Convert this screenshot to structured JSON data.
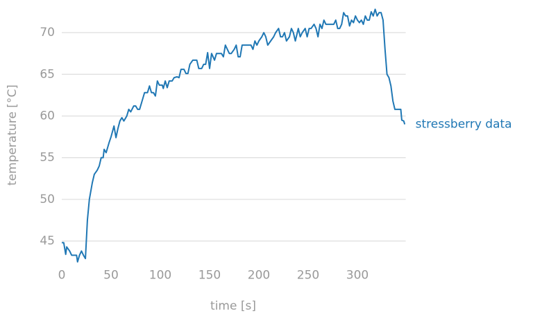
{
  "chart_data": {
    "type": "line",
    "xlabel": "time [s]",
    "ylabel": "temperature [°C]",
    "x": [
      0,
      2,
      4,
      5,
      8,
      10,
      13,
      15,
      16,
      18,
      20,
      22,
      24,
      26,
      28,
      31,
      33,
      36,
      38,
      40,
      42,
      43,
      45,
      48,
      50,
      53,
      55,
      57,
      59,
      61,
      63,
      66,
      68,
      70,
      73,
      75,
      77,
      79,
      82,
      84,
      87,
      89,
      91,
      93,
      95,
      97,
      99,
      102,
      103,
      105,
      107,
      109,
      112,
      114,
      117,
      119,
      121,
      124,
      126,
      128,
      130,
      133,
      137,
      139,
      142,
      144,
      146,
      148,
      150,
      152,
      155,
      157,
      159,
      162,
      164,
      166,
      168,
      170,
      172,
      175,
      177,
      179,
      181,
      183,
      186,
      192,
      194,
      196,
      198,
      200,
      203,
      205,
      207,
      209,
      212,
      215,
      217,
      220,
      222,
      224,
      226,
      228,
      231,
      233,
      235,
      237,
      240,
      242,
      244,
      247,
      249,
      251,
      253,
      256,
      258,
      260,
      262,
      264,
      266,
      268,
      271,
      273,
      276,
      278,
      280,
      282,
      284,
      286,
      288,
      290,
      292,
      294,
      296,
      298,
      300,
      302,
      304,
      306,
      308,
      310,
      312,
      314,
      316,
      318,
      320,
      322,
      324,
      326,
      328,
      330,
      332,
      334,
      336,
      338,
      340,
      342,
      344,
      345,
      347,
      348
    ],
    "series": [
      {
        "name": "stressberry data",
        "color": "#1f77b4",
        "values": [
          44.8,
          44.8,
          43.4,
          44.3,
          43.8,
          43.3,
          43.3,
          43.3,
          42.5,
          43.3,
          43.8,
          43.3,
          42.9,
          47.5,
          50,
          52,
          53,
          53.5,
          54,
          55,
          55,
          56,
          55.6,
          56.8,
          57.5,
          58.8,
          57.4,
          58.5,
          59.4,
          59.8,
          59.4,
          60,
          60.8,
          60.5,
          61.2,
          61.2,
          60.8,
          60.8,
          62,
          62.8,
          62.8,
          63.6,
          62.8,
          62.8,
          62.4,
          64.2,
          63.7,
          63.7,
          63.3,
          64.2,
          63.4,
          64.2,
          64.2,
          64.6,
          64.7,
          64.6,
          65.6,
          65.6,
          65.1,
          65.1,
          66.2,
          66.7,
          66.7,
          65.7,
          65.7,
          66.2,
          66.2,
          67.6,
          65.7,
          67.5,
          66.7,
          67.5,
          67.5,
          67.5,
          67.1,
          68.5,
          68,
          67.5,
          67.5,
          68,
          68.5,
          67.1,
          67.1,
          68.5,
          68.5,
          68.5,
          68,
          69,
          68.5,
          69,
          69.5,
          70,
          69.5,
          68.5,
          69,
          69.5,
          70,
          70.5,
          69.5,
          69.5,
          70,
          69,
          69.5,
          70.5,
          70,
          69,
          70.5,
          69.5,
          70,
          70.5,
          69.5,
          70.5,
          70.5,
          71,
          70.5,
          69.5,
          71,
          70.5,
          71.5,
          71,
          71,
          71,
          71,
          71.5,
          70.5,
          70.5,
          71,
          72.4,
          72,
          72,
          70.8,
          71.5,
          71.2,
          72,
          71.5,
          71.2,
          71.5,
          71,
          72,
          71.5,
          71.5,
          72.5,
          72,
          72.8,
          72,
          72.4,
          72.4,
          71.5,
          68,
          65,
          64.6,
          63.6,
          61.8,
          60.8,
          60.8,
          60.8,
          60.8,
          59.5,
          59.4,
          59.0
        ]
      }
    ],
    "xlim": [
      0,
      349
    ],
    "ylim": [
      42.3,
      73
    ],
    "xticks": [
      0,
      50,
      100,
      150,
      200,
      250,
      300
    ],
    "yticks": [
      45,
      50,
      55,
      60,
      65,
      70
    ],
    "grid": true
  }
}
